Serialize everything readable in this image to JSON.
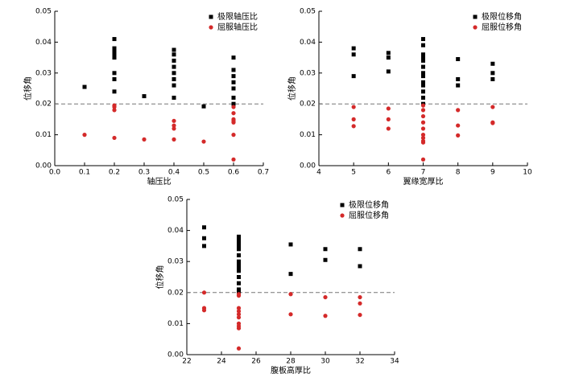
{
  "chart_data": [
    {
      "type": "scatter",
      "x_label": "轴压比",
      "y_label": "位移角",
      "legend": "top-right",
      "xlim": [
        0,
        0.7
      ],
      "xticks": [
        {
          "value": 0,
          "label": "0.0"
        },
        0.1,
        0.2,
        0.3,
        0.4,
        0.5,
        0.6,
        0.7
      ],
      "ylim": [
        0,
        0.05
      ],
      "yticks": [
        {
          "value": 0,
          "label": "0.00"
        },
        0.01,
        0.02,
        0.03,
        0.04,
        0.05
      ],
      "hlines": [
        0.02
      ],
      "series": [
        {
          "name": "极限轴压比",
          "color": "#000000",
          "marker": "square",
          "x": [
            0.1,
            0.2,
            0.2,
            0.2,
            0.2,
            0.2,
            0.2,
            0.2,
            0.2,
            0.3,
            0.4,
            0.4,
            0.4,
            0.4,
            0.4,
            0.4,
            0.4,
            0.4,
            0.5,
            0.6,
            0.6,
            0.6,
            0.6,
            0.6,
            0.6,
            0.6
          ],
          "values": [
            0.0255,
            0.041,
            0.038,
            0.037,
            0.036,
            0.035,
            0.03,
            0.028,
            0.024,
            0.0225,
            0.0375,
            0.036,
            0.034,
            0.032,
            0.03,
            0.028,
            0.026,
            0.022,
            0.0192,
            0.035,
            0.031,
            0.029,
            0.027,
            0.025,
            0.022,
            0.02
          ]
        },
        {
          "name": "屈服轴压比",
          "color": "#d42a2a",
          "marker": "circle",
          "x": [
            0.1,
            0.2,
            0.2,
            0.2,
            0.2,
            0.3,
            0.4,
            0.4,
            0.4,
            0.4,
            0.5,
            0.6,
            0.6,
            0.6,
            0.6,
            0.6,
            0.6,
            0.6
          ],
          "values": [
            0.01,
            0.0195,
            0.019,
            0.018,
            0.009,
            0.0085,
            0.0145,
            0.013,
            0.012,
            0.0085,
            0.0078,
            0.019,
            0.017,
            0.015,
            0.0145,
            0.014,
            0.01,
            0.002
          ]
        }
      ]
    },
    {
      "type": "scatter",
      "x_label": "翼缘宽厚比",
      "y_label": "位移角",
      "legend": "top-right",
      "xlim": [
        4,
        10
      ],
      "xticks": [
        4,
        5,
        6,
        7,
        8,
        9,
        10
      ],
      "ylim": [
        0,
        0.05
      ],
      "yticks": [
        {
          "value": 0,
          "label": "0.00"
        },
        0.01,
        0.02,
        0.03,
        0.04,
        0.05
      ],
      "hlines": [
        0.02
      ],
      "series": [
        {
          "name": "极限位移角",
          "color": "#000000",
          "marker": "square",
          "x": [
            5,
            5,
            5,
            6,
            6,
            6,
            7,
            7,
            7,
            7,
            7,
            7,
            7,
            7,
            7,
            7,
            7,
            7,
            7,
            8,
            8,
            8,
            9,
            9,
            9
          ],
          "values": [
            0.038,
            0.036,
            0.029,
            0.0365,
            0.035,
            0.0305,
            0.041,
            0.039,
            0.036,
            0.035,
            0.034,
            0.032,
            0.03,
            0.029,
            0.027,
            0.026,
            0.024,
            0.022,
            0.02,
            0.0345,
            0.028,
            0.026,
            0.033,
            0.03,
            0.028
          ]
        },
        {
          "name": "屈服位移角",
          "color": "#d42a2a",
          "marker": "circle",
          "x": [
            5,
            5,
            5,
            6,
            6,
            6,
            7,
            7,
            7,
            7,
            7,
            7,
            7,
            7,
            7,
            7,
            8,
            8,
            8,
            9,
            9,
            9
          ],
          "values": [
            0.019,
            0.015,
            0.0128,
            0.0185,
            0.015,
            0.012,
            0.0195,
            0.018,
            0.016,
            0.014,
            0.012,
            0.01,
            0.009,
            0.008,
            0.0075,
            0.002,
            0.018,
            0.013,
            0.0098,
            0.019,
            0.014,
            0.0138
          ]
        }
      ]
    },
    {
      "type": "scatter",
      "x_label": "腹板高厚比",
      "y_label": "位移角",
      "legend": "top-right",
      "xlim": [
        22,
        34
      ],
      "xticks": [
        22,
        24,
        26,
        28,
        30,
        32,
        34
      ],
      "ylim": [
        0,
        0.05
      ],
      "yticks": [
        {
          "value": 0,
          "label": "0.00"
        },
        0.01,
        0.02,
        0.03,
        0.04,
        0.05
      ],
      "hlines": [
        0.02
      ],
      "series": [
        {
          "name": "极限位移角",
          "color": "#000000",
          "marker": "square",
          "x": [
            23,
            23,
            23,
            25,
            25,
            25,
            25,
            25,
            25,
            25,
            25,
            25,
            25,
            25,
            25,
            25,
            25,
            28,
            28,
            30,
            30,
            32,
            32
          ],
          "values": [
            0.041,
            0.0375,
            0.035,
            0.038,
            0.037,
            0.036,
            0.035,
            0.034,
            0.032,
            0.03,
            0.029,
            0.028,
            0.027,
            0.025,
            0.023,
            0.021,
            0.02,
            0.0355,
            0.026,
            0.034,
            0.0305,
            0.034,
            0.0285
          ]
        },
        {
          "name": "屈服位移角",
          "color": "#d42a2a",
          "marker": "circle",
          "x": [
            23,
            23,
            23,
            25,
            25,
            25,
            25,
            25,
            25,
            25,
            25,
            25,
            25,
            28,
            28,
            30,
            30,
            32,
            32,
            32
          ],
          "values": [
            0.02,
            0.015,
            0.0143,
            0.0195,
            0.019,
            0.015,
            0.014,
            0.013,
            0.012,
            0.01,
            0.0092,
            0.0085,
            0.002,
            0.0195,
            0.013,
            0.0185,
            0.0125,
            0.0185,
            0.0165,
            0.0128
          ]
        }
      ]
    }
  ]
}
